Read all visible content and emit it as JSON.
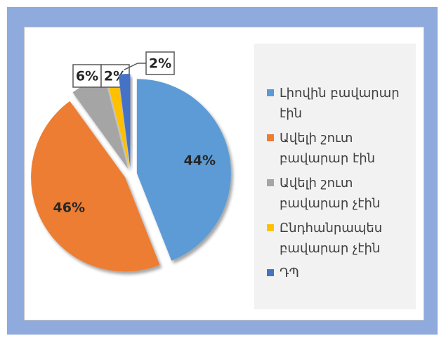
{
  "chart_data": {
    "type": "pie",
    "categories": [
      "Լիովին բավարար էին",
      "Ավելի շուտ բավարար էին",
      "Ավելի շուտ բավարար չէին",
      "Ընդհանրապես բավարար չէին",
      "ԴՊ"
    ],
    "values": [
      44,
      46,
      6,
      2,
      2
    ],
    "value_labels": [
      "44%",
      "46%",
      "6%",
      "2%",
      "2%"
    ],
    "colors": [
      "#5b9bd5",
      "#ed7d31",
      "#a5a5a5",
      "#ffc000",
      "#4472c4"
    ],
    "legend": "right"
  }
}
